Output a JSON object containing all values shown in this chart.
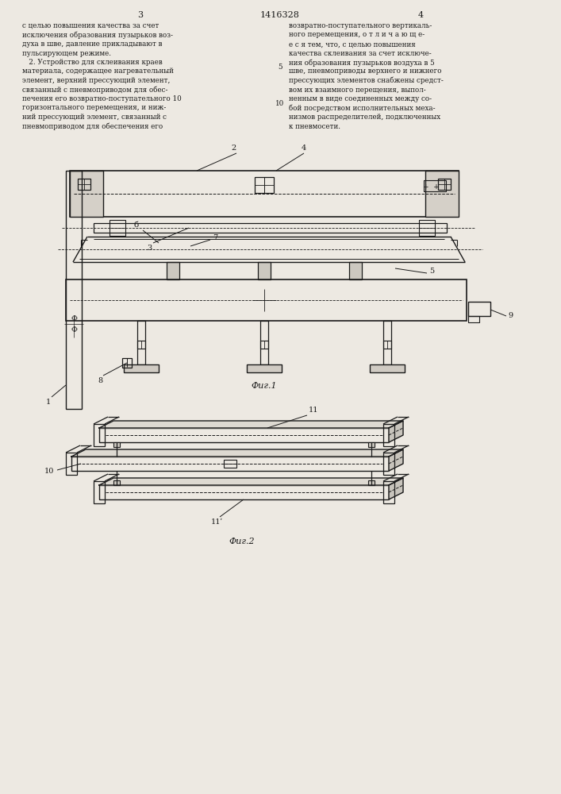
{
  "page_width": 7.07,
  "page_height": 10.0,
  "bg_color": "#ede9e2",
  "lc": "#1a1a1a",
  "tc": "#1a1a1a",
  "header": "1416328",
  "pn_left": "3",
  "pn_right": "4",
  "fig1_cap": "Фиг.1",
  "fig2_cap": "Фиг.2",
  "left_lines": [
    "с целью повышения качества за счет",
    "исключения образования пузырьков воз-",
    "духа в шве, давление прикладывают в",
    "пульсирующем режиме.",
    "   2. Устройство для склеивания краев",
    "материала, содержащее нагревательный",
    "элемент, верхний прессующий элемент,",
    "связанный с пневмоприводом для обес-",
    "печения его возвратно-поступательного 10",
    "горизонтального перемещения, и ниж-",
    "ний прессующий элемент, связанный с",
    "пневмоприводом для обеспечения его"
  ],
  "right_lines": [
    "возвратно-поступательного вертикаль-",
    "ного перемещения, о т л и ч а ю щ е-",
    "е с я тем, что, с целью повышения",
    "качества склеивания за счет исключе-",
    "ния образования пузырьков воздуха в 5",
    "шве, пневмоприводы верхнего и нижнего",
    "прессующих элементов снабжены средст-",
    "вом их взаимного перещения, выпол-",
    "ненным в виде соединенных между со-",
    "бой посредством исполнительных меха-",
    "низмов распределителей, подключенных",
    "к пневмосети."
  ]
}
